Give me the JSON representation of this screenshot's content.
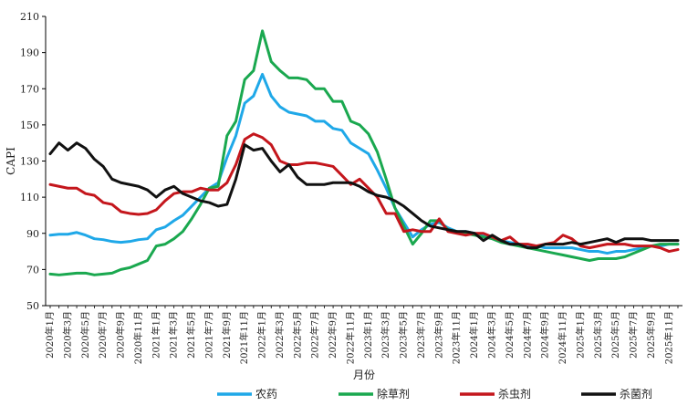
{
  "chart_data": {
    "type": "line",
    "title": "",
    "ylabel": "CAPI",
    "xlabel": "月份",
    "ylim": [
      50,
      210
    ],
    "yticks": [
      50,
      70,
      90,
      110,
      130,
      150,
      170,
      190,
      210
    ],
    "grid": false,
    "legend_position": "bottom",
    "x": [
      "2020年1月",
      "2020年2月",
      "2020年3月",
      "2020年4月",
      "2020年5月",
      "2020年6月",
      "2020年7月",
      "2020年8月",
      "2020年9月",
      "2020年10月",
      "2020年11月",
      "2020年12月",
      "2021年1月",
      "2021年2月",
      "2021年3月",
      "2021年4月",
      "2021年5月",
      "2021年6月",
      "2021年7月",
      "2021年8月",
      "2021年9月",
      "2021年10月",
      "2021年11月",
      "2021年12月",
      "2022年1月",
      "2022年2月",
      "2022年3月",
      "2022年4月",
      "2022年5月",
      "2022年6月",
      "2022年7月",
      "2022年8月",
      "2022年9月",
      "2022年10月",
      "2022年11月",
      "2022年12月",
      "2023年1月",
      "2023年2月",
      "2023年3月",
      "2023年4月",
      "2023年5月",
      "2023年6月",
      "2023年7月",
      "2023年8月",
      "2023年9月",
      "2023年10月",
      "2023年11月",
      "2023年12月",
      "2024年1月",
      "2024年2月",
      "2024年3月",
      "2024年4月",
      "2024年5月",
      "2024年6月",
      "2024年7月",
      "2024年8月",
      "2024年9月",
      "2024年10月",
      "2024年11月",
      "2024年12月",
      "2025年1月",
      "2025年2月",
      "2025年3月",
      "2025年4月",
      "2025年5月",
      "2025年6月",
      "2025年7月",
      "2025年8月",
      "2025年9月",
      "2025年10月",
      "2025年11月",
      "2025年12月"
    ],
    "xtick_labels": [
      "2020年1月",
      "2020年3月",
      "2020年5月",
      "2020年7月",
      "2020年9月",
      "2020年11月",
      "2021年1月",
      "2021年3月",
      "2021年5月",
      "2021年7月",
      "2021年9月",
      "2021年11月",
      "2022年1月",
      "2022年3月",
      "2022年5月",
      "2022年7月",
      "2022年9月",
      "2022年11月",
      "2023年1月",
      "2023年3月",
      "2023年5月",
      "2023年7月",
      "2023年9月",
      "2023年11月",
      "2024年1月",
      "2024年3月",
      "2024年5月",
      "2024年7月",
      "2024年9月",
      "2024年11月",
      "2025年1月",
      "2025年3月",
      "2025年5月",
      "2025年7月",
      "2025年9月",
      "2025年11月"
    ],
    "series": [
      {
        "name": "农药",
        "color": "#1fa8e8",
        "values": [
          89,
          89.5,
          89.5,
          90.5,
          89,
          87,
          86.5,
          85.5,
          85,
          85.5,
          86.5,
          87,
          92,
          93.5,
          97,
          100,
          105,
          110,
          115,
          118,
          132,
          144,
          162,
          166,
          178,
          166,
          160,
          157,
          156,
          155,
          152,
          152,
          148,
          147,
          140,
          137,
          134,
          125,
          115,
          104,
          96,
          88,
          92,
          95,
          96,
          93,
          91,
          91,
          90,
          89,
          88,
          86,
          85,
          84,
          83,
          83,
          82,
          82,
          82,
          82,
          81,
          80,
          80,
          79,
          80,
          80,
          81,
          82,
          83,
          83,
          84,
          84
        ]
      },
      {
        "name": "除草剂",
        "color": "#1aa84f",
        "values": [
          67.5,
          67,
          67.5,
          68,
          68,
          67,
          67.5,
          68,
          70,
          71,
          73,
          75,
          83,
          84,
          87,
          91,
          98,
          106,
          115,
          116,
          144,
          152,
          175,
          180,
          202,
          185,
          180,
          176,
          176,
          175,
          170,
          170,
          163,
          163,
          152,
          150,
          145,
          135,
          120,
          104,
          94,
          84,
          90,
          97,
          97,
          92,
          91,
          90,
          89,
          88,
          87,
          85,
          84,
          83,
          82,
          81,
          80,
          79,
          78,
          77,
          76,
          75,
          76,
          76,
          76,
          77,
          79,
          81,
          83,
          84,
          84,
          84
        ]
      },
      {
        "name": "杀虫剂",
        "color": "#c4161c",
        "values": [
          117,
          116,
          115,
          115,
          112,
          111,
          107,
          106,
          102,
          101,
          100.5,
          101,
          103,
          108,
          112,
          113,
          113,
          115,
          114,
          114,
          118,
          128,
          142,
          145,
          143,
          139,
          130,
          128,
          128,
          129,
          129,
          128,
          127,
          122,
          117,
          120,
          115,
          110,
          101,
          101,
          91,
          92,
          91,
          91,
          98,
          91,
          90,
          89,
          90,
          90,
          88,
          86,
          88,
          84,
          84,
          83,
          84,
          85,
          89,
          87,
          83,
          82,
          83,
          84,
          84,
          84,
          83,
          83,
          83,
          82,
          80,
          81
        ]
      },
      {
        "name": "杀菌剂",
        "color": "#111111",
        "values": [
          134,
          140,
          136,
          140,
          137,
          131,
          127,
          120,
          118,
          117,
          116,
          114,
          110,
          114,
          116,
          112,
          110,
          108,
          107,
          105,
          106,
          120,
          139,
          136,
          137,
          130,
          124,
          128,
          121,
          117,
          117,
          117,
          118,
          118,
          118,
          116,
          113,
          111,
          110,
          108,
          105,
          101,
          97,
          94,
          93,
          92,
          91,
          91,
          90,
          86,
          89,
          86,
          84,
          84,
          82,
          82,
          84,
          84,
          84,
          85,
          84,
          85,
          86,
          87,
          85,
          87,
          87,
          87,
          86,
          86,
          86,
          86
        ]
      }
    ]
  }
}
